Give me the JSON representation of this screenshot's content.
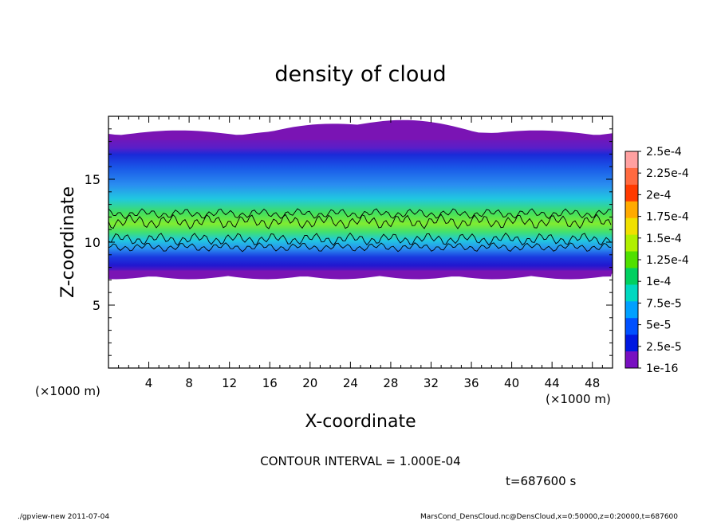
{
  "chart_data": {
    "type": "heatmap",
    "title": "density of cloud",
    "xlabel": "X-coordinate",
    "ylabel": "Z-coordinate",
    "x_unit_left": "(×1000 m)",
    "x_unit_right": "(×1000 m)",
    "xlim": [
      0,
      50
    ],
    "ylim": [
      0,
      20
    ],
    "x_ticks": [
      4,
      8,
      12,
      16,
      20,
      24,
      28,
      32,
      36,
      40,
      44,
      48
    ],
    "y_ticks": [
      5,
      10,
      15
    ],
    "contour_interval_label": "CONTOUR INTERVAL = 1.000E-04",
    "contour_levels": [
      0.0001
    ],
    "colorbar": {
      "labels": [
        "2.5e-4",
        "2.25e-4",
        "2e-4",
        "1.75e-4",
        "1.5e-4",
        "1.25e-4",
        "1e-4",
        "7.5e-5",
        "5e-5",
        "2.5e-5",
        "1e-16"
      ],
      "colors": [
        "#ffa0a0",
        "#ff6a40",
        "#ff3a00",
        "#ffaa00",
        "#f0e000",
        "#b0f000",
        "#50e000",
        "#00d060",
        "#00d8c0",
        "#00a0ff",
        "#0050ff",
        "#0018e0",
        "#7810c0"
      ]
    },
    "cloud_band": {
      "z_bottom": 7.5,
      "z_top": 18.5,
      "z_peak": 11,
      "peak_value": 0.00014
    },
    "time_label": "t=687600 s"
  },
  "footer": {
    "left": "./gpview-new  2011-07-04",
    "right": "MarsCond_DensCloud.nc@DensCloud,x=0:50000,z=0:20000,t=687600"
  }
}
